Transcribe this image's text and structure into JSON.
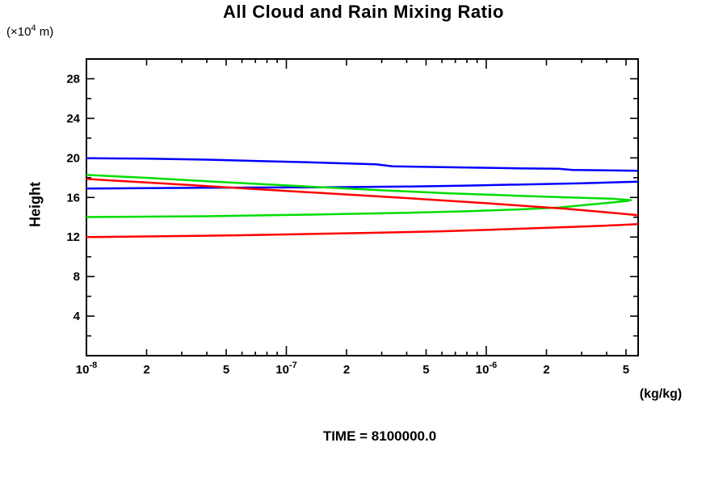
{
  "labels": {
    "title": "All Cloud and Rain Mixing Ratio",
    "y_unit": {
      "prefix": "(×10",
      "sup": "4",
      "suffix": " m)"
    },
    "y_axis_title": "Height",
    "x_unit": "(kg/kg)",
    "time": "TIME = 8100000.0"
  },
  "colors": {
    "background": "#ffffff",
    "axis": "#000000",
    "blue": "#0000ff",
    "green": "#00dd00",
    "red": "#ff0000"
  },
  "chart_data": {
    "type": "line",
    "x_scale": "log",
    "x_range": [
      1e-08,
      5.75e-06
    ],
    "y_range": [
      0,
      30
    ],
    "xlabel": "(kg/kg)",
    "ylabel": "Height (x10^4 m)",
    "grid": false,
    "legend": false,
    "x_tick_labels": [
      {
        "v": 1e-08,
        "t": "10",
        "sup": "-8"
      },
      {
        "v": 2e-08,
        "t": "2"
      },
      {
        "v": 5e-08,
        "t": "5"
      },
      {
        "v": 1e-07,
        "t": "10",
        "sup": "-7"
      },
      {
        "v": 2e-07,
        "t": "2"
      },
      {
        "v": 5e-07,
        "t": "5"
      },
      {
        "v": 1e-06,
        "t": "10",
        "sup": "-6"
      },
      {
        "v": 2e-06,
        "t": "2"
      },
      {
        "v": 5e-06,
        "t": "5"
      }
    ],
    "y_tick_step_minor": 2,
    "y_tick_step_major": 4,
    "series": [
      {
        "name": "blue-upper-branch",
        "color": "#0000ff",
        "points": [
          [
            1e-08,
            19.97
          ],
          [
            2e-08,
            19.93
          ],
          [
            4e-08,
            19.82
          ],
          [
            8e-08,
            19.66
          ],
          [
            1.5e-07,
            19.52
          ],
          [
            2.8e-07,
            19.35
          ],
          [
            3.4e-07,
            19.15
          ],
          [
            7e-07,
            19.05
          ],
          [
            1.4e-06,
            18.95
          ],
          [
            2.3e-06,
            18.9
          ],
          [
            2.7e-06,
            18.78
          ],
          [
            5.75e-06,
            18.7
          ]
        ]
      },
      {
        "name": "blue-lower-branch",
        "color": "#0000ff",
        "points": [
          [
            1e-08,
            16.9
          ],
          [
            4e-08,
            16.98
          ],
          [
            1.5e-07,
            17.03
          ],
          [
            4e-07,
            17.1
          ],
          [
            8e-07,
            17.2
          ],
          [
            1.6e-06,
            17.32
          ],
          [
            3e-06,
            17.44
          ],
          [
            5.75e-06,
            17.6
          ]
        ]
      },
      {
        "name": "green-loop",
        "color": "#00dd00",
        "points": [
          [
            1e-08,
            18.28
          ],
          [
            2e-08,
            17.98
          ],
          [
            4e-08,
            17.64
          ],
          [
            8e-08,
            17.32
          ],
          [
            1.6e-07,
            17.0
          ],
          [
            3.2e-07,
            16.7
          ],
          [
            6.5e-07,
            16.42
          ],
          [
            1.3e-06,
            16.2
          ],
          [
            2.6e-06,
            16.0
          ],
          [
            4.3e-06,
            15.87
          ],
          [
            5.3e-06,
            15.73
          ],
          [
            5e-06,
            15.63
          ],
          [
            4.2e-06,
            15.48
          ],
          [
            3.2e-06,
            15.25
          ],
          [
            2.3e-06,
            14.98
          ],
          [
            1.4e-06,
            14.78
          ],
          [
            8e-07,
            14.6
          ],
          [
            4e-07,
            14.45
          ],
          [
            1.5e-07,
            14.28
          ],
          [
            4e-08,
            14.1
          ],
          [
            1e-08,
            14.02
          ]
        ]
      },
      {
        "name": "red-upper-branch",
        "color": "#ff0000",
        "points": [
          [
            1e-08,
            17.87
          ],
          [
            2.4e-08,
            17.42
          ],
          [
            6e-08,
            16.93
          ],
          [
            1.5e-07,
            16.45
          ],
          [
            3.9e-07,
            15.95
          ],
          [
            1e-06,
            15.42
          ],
          [
            2.5e-06,
            14.85
          ],
          [
            4e-06,
            14.5
          ],
          [
            5.75e-06,
            14.2
          ]
        ]
      },
      {
        "name": "red-lower-branch",
        "color": "#ff0000",
        "points": [
          [
            1e-08,
            11.99
          ],
          [
            2.4e-08,
            12.07
          ],
          [
            6e-08,
            12.18
          ],
          [
            2.4e-07,
            12.4
          ],
          [
            6e-07,
            12.58
          ],
          [
            1e-06,
            12.72
          ],
          [
            2.5e-06,
            13.0
          ],
          [
            4e-06,
            13.15
          ],
          [
            5.75e-06,
            13.3
          ]
        ]
      }
    ]
  }
}
